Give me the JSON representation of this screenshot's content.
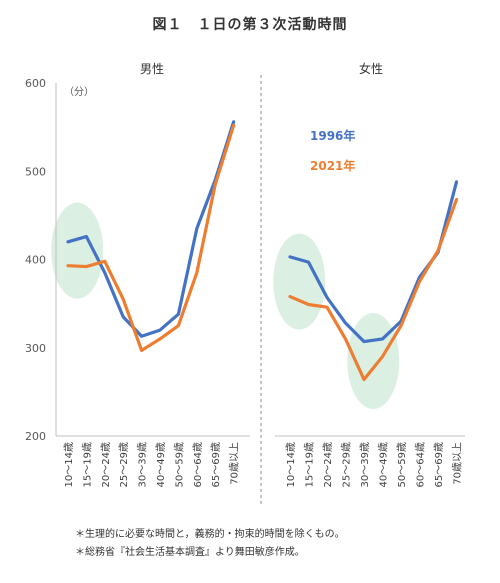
{
  "title": "図１　１日の第３次活動時間",
  "notes": [
    "＊生理的に必要な時間と，義務的・拘束的時間を除くもの。",
    "＊総務省『社会生活基本調査』より舞田敏彦作成。"
  ],
  "chart_data": {
    "type": "line",
    "unit_label": "（分）",
    "ylim": [
      200,
      600
    ],
    "yticks": [
      200,
      300,
      400,
      500,
      600
    ],
    "categories": [
      "10～14歳",
      "15～19歳",
      "20～24歳",
      "25～29歳",
      "30～39歳",
      "40～49歳",
      "50～59歳",
      "60～64歳",
      "65～69歳",
      "70歳以上"
    ],
    "legend": {
      "placement": "inside-right-panel-top"
    },
    "series_colors": {
      "1996年": "#4472C4",
      "2021年": "#ED7D31"
    },
    "panels": [
      {
        "title": "男性",
        "series": [
          {
            "name": "1996年",
            "values": [
              420,
              426,
              385,
              335,
              313,
              320,
              338,
              435,
              490,
              556
            ]
          },
          {
            "name": "2021年",
            "values": [
              393,
              392,
              398,
              355,
              297,
              310,
              325,
              385,
              485,
              552
            ]
          }
        ],
        "highlights": [
          {
            "x": 0.5,
            "y": 410
          }
        ]
      },
      {
        "title": "女性",
        "series": [
          {
            "name": "1996年",
            "values": [
              403,
              397,
              357,
              328,
              307,
              310,
              330,
              380,
              408,
              488
            ]
          },
          {
            "name": "2021年",
            "values": [
              358,
              349,
              346,
              310,
              264,
              290,
              325,
              375,
              410,
              468
            ]
          }
        ],
        "highlights": [
          {
            "x": 0.5,
            "y": 375
          },
          {
            "x": 4.5,
            "y": 285
          }
        ]
      }
    ]
  }
}
